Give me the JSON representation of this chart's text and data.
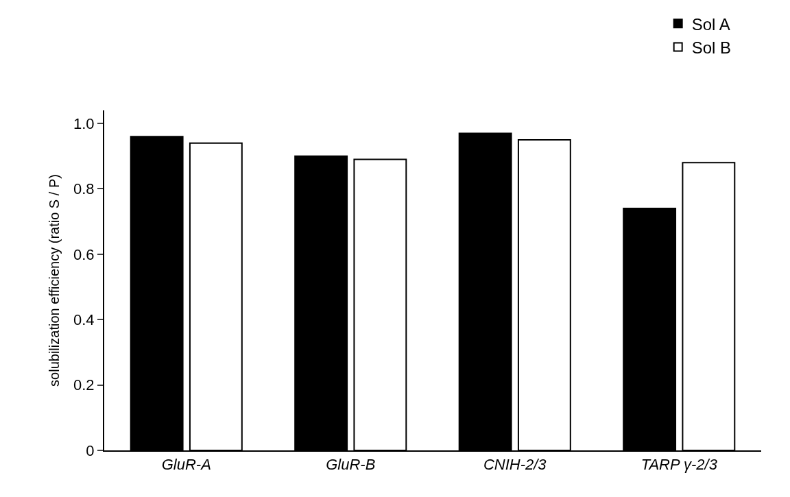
{
  "chart_data": {
    "type": "bar",
    "ylabel": "solubilization efficiency (ratio S / P)",
    "categories": [
      "GluR-A",
      "GluR-B",
      "CNIH-2/3",
      "TARP γ-2/3"
    ],
    "series": [
      {
        "name": "Sol A",
        "color": "#000000",
        "values": [
          0.96,
          0.9,
          0.97,
          0.74
        ]
      },
      {
        "name": "Sol B",
        "color": "#ffffff",
        "values": [
          0.94,
          0.89,
          0.95,
          0.88
        ]
      }
    ],
    "ylim": [
      0,
      1.04
    ],
    "yticks": [
      {
        "value": 0,
        "label": "0"
      },
      0.2,
      0.4,
      0.6,
      0.8,
      {
        "value": 1,
        "label": "1.0"
      }
    ],
    "legend": "top right"
  }
}
